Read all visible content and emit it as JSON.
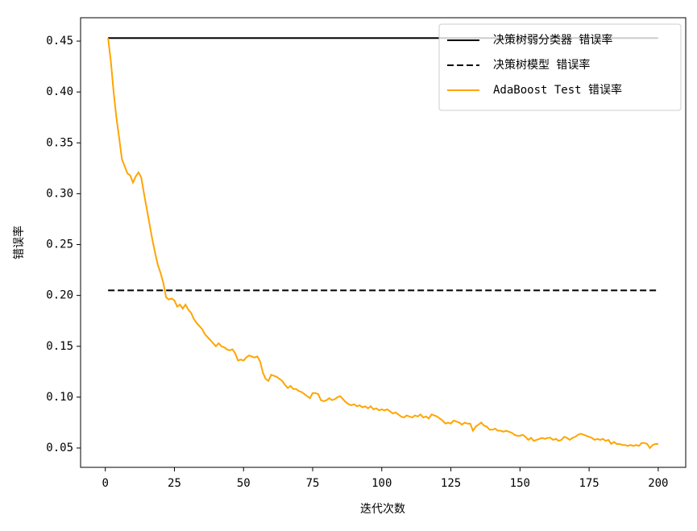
{
  "chart_data": {
    "type": "line",
    "xlabel": "迭代次数",
    "ylabel": "错误率",
    "x": [
      1,
      2,
      3,
      4,
      5,
      6,
      7,
      8,
      9,
      10,
      11,
      12,
      13,
      14,
      15,
      16,
      17,
      18,
      19,
      20,
      21,
      22,
      23,
      24,
      25,
      26,
      27,
      28,
      29,
      30,
      31,
      32,
      33,
      34,
      35,
      36,
      37,
      38,
      39,
      40,
      41,
      42,
      43,
      44,
      45,
      46,
      47,
      48,
      49,
      50,
      51,
      52,
      53,
      54,
      55,
      56,
      57,
      58,
      59,
      60,
      61,
      62,
      63,
      64,
      65,
      66,
      67,
      68,
      69,
      70,
      71,
      72,
      73,
      74,
      75,
      76,
      77,
      78,
      79,
      80,
      81,
      82,
      83,
      84,
      85,
      86,
      87,
      88,
      89,
      90,
      91,
      92,
      93,
      94,
      95,
      96,
      97,
      98,
      99,
      100,
      101,
      102,
      103,
      104,
      105,
      106,
      107,
      108,
      109,
      110,
      111,
      112,
      113,
      114,
      115,
      116,
      117,
      118,
      119,
      120,
      121,
      122,
      123,
      124,
      125,
      126,
      127,
      128,
      129,
      130,
      131,
      132,
      133,
      134,
      135,
      136,
      137,
      138,
      139,
      140,
      141,
      142,
      143,
      144,
      145,
      146,
      147,
      148,
      149,
      150,
      151,
      152,
      153,
      154,
      155,
      156,
      157,
      158,
      159,
      160,
      161,
      162,
      163,
      164,
      165,
      166,
      167,
      168,
      169,
      170,
      171,
      172,
      173,
      174,
      175,
      176,
      177,
      178,
      179,
      180,
      181,
      182,
      183,
      184,
      185,
      186,
      187,
      188,
      189,
      190,
      191,
      192,
      193,
      194,
      195,
      196,
      197,
      198,
      199,
      200
    ],
    "series": [
      {
        "name": "决策树弱分类器 错误率",
        "color": "#000000",
        "linestyle": "solid",
        "x": [
          1,
          200
        ],
        "values": [
          0.453,
          0.453
        ]
      },
      {
        "name": "决策树模型 错误率",
        "color": "#000000",
        "linestyle": "dashed",
        "x": [
          1,
          200
        ],
        "values": [
          0.205,
          0.205
        ]
      },
      {
        "name": "AdaBoost Test 错误率",
        "color": "#ffa500",
        "linestyle": "solid",
        "values": [
          0.453,
          0.43,
          0.4,
          0.375,
          0.355,
          0.334,
          0.327,
          0.32,
          0.318,
          0.311,
          0.317,
          0.321,
          0.316,
          0.3,
          0.285,
          0.27,
          0.255,
          0.242,
          0.23,
          0.222,
          0.212,
          0.198,
          0.196,
          0.197,
          0.195,
          0.189,
          0.191,
          0.187,
          0.191,
          0.186,
          0.183,
          0.177,
          0.173,
          0.17,
          0.167,
          0.162,
          0.159,
          0.156,
          0.153,
          0.15,
          0.153,
          0.15,
          0.149,
          0.147,
          0.146,
          0.147,
          0.143,
          0.136,
          0.137,
          0.136,
          0.139,
          0.141,
          0.14,
          0.139,
          0.14,
          0.135,
          0.124,
          0.118,
          0.116,
          0.122,
          0.121,
          0.12,
          0.118,
          0.116,
          0.112,
          0.109,
          0.111,
          0.108,
          0.108,
          0.106,
          0.105,
          0.103,
          0.101,
          0.099,
          0.104,
          0.104,
          0.103,
          0.097,
          0.096,
          0.097,
          0.099,
          0.097,
          0.098,
          0.1,
          0.101,
          0.098,
          0.095,
          0.093,
          0.092,
          0.093,
          0.091,
          0.092,
          0.09,
          0.091,
          0.089,
          0.091,
          0.088,
          0.089,
          0.087,
          0.088,
          0.087,
          0.088,
          0.086,
          0.084,
          0.085,
          0.083,
          0.081,
          0.08,
          0.082,
          0.081,
          0.08,
          0.082,
          0.081,
          0.083,
          0.08,
          0.081,
          0.079,
          0.083,
          0.082,
          0.081,
          0.079,
          0.077,
          0.074,
          0.075,
          0.074,
          0.077,
          0.076,
          0.075,
          0.073,
          0.075,
          0.074,
          0.074,
          0.067,
          0.071,
          0.073,
          0.075,
          0.072,
          0.071,
          0.068,
          0.068,
          0.069,
          0.067,
          0.067,
          0.066,
          0.067,
          0.066,
          0.065,
          0.063,
          0.062,
          0.062,
          0.063,
          0.061,
          0.058,
          0.06,
          0.057,
          0.058,
          0.059,
          0.06,
          0.059,
          0.06,
          0.06,
          0.058,
          0.059,
          0.057,
          0.058,
          0.061,
          0.06,
          0.058,
          0.06,
          0.061,
          0.063,
          0.064,
          0.063,
          0.062,
          0.061,
          0.06,
          0.058,
          0.059,
          0.058,
          0.059,
          0.057,
          0.058,
          0.054,
          0.056,
          0.054,
          0.054,
          0.053,
          0.053,
          0.052,
          0.053,
          0.052,
          0.053,
          0.052,
          0.055,
          0.055,
          0.054,
          0.05,
          0.053,
          0.054,
          0.054
        ]
      }
    ],
    "xlim": [
      -8.95,
      209.95
    ],
    "xticks": [
      0,
      25,
      50,
      75,
      100,
      125,
      150,
      175,
      200
    ],
    "ylim": [
      0.031,
      0.473
    ],
    "yticks": [
      0.05,
      {
        "value": 0.1,
        "label": "0.10"
      },
      0.15,
      {
        "value": 0.2,
        "label": "0.20"
      },
      0.25,
      {
        "value": 0.3,
        "label": "0.30"
      },
      0.35,
      {
        "value": 0.4,
        "label": "0.40"
      },
      0.45
    ],
    "grid": false,
    "legend": "upper right"
  }
}
